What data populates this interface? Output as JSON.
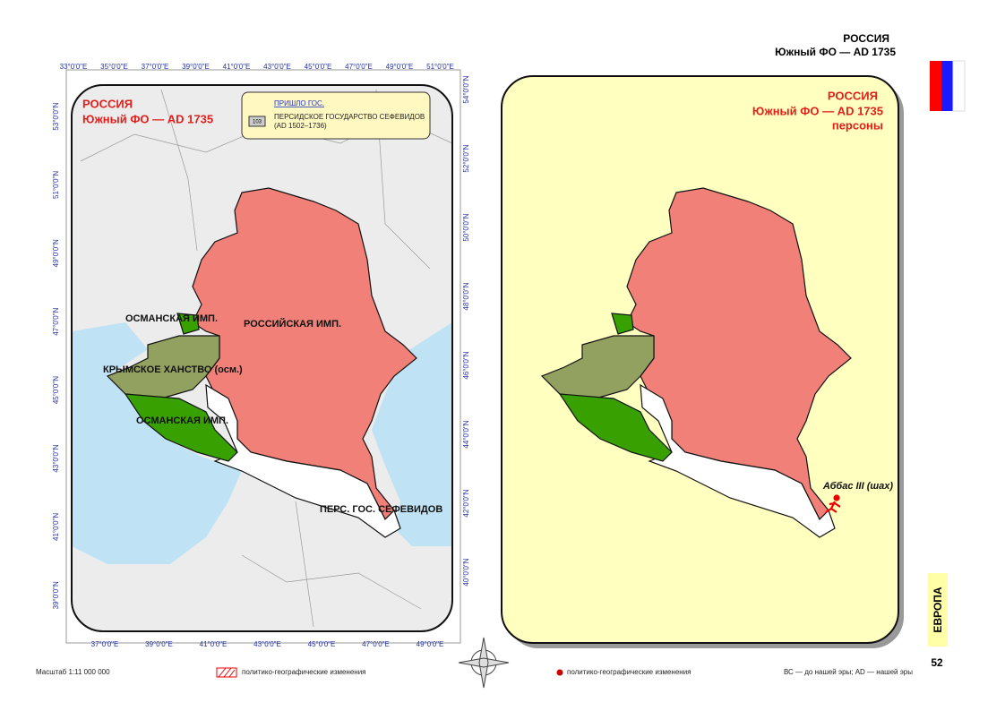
{
  "header": {
    "title": "РОССИЯ",
    "subtitle": "Южный ФО — AD 1735"
  },
  "left_map": {
    "title": "РОССИЯ",
    "subtitle": "Южный ФО — AD 1735",
    "legend": {
      "heading": "ПРИШЛО ГОС.",
      "code": "103",
      "name": "ПЕРСИДСКОЕ ГОСУДАРСТВО СЕФЕВИДОВ",
      "period": "(AD 1502–1736)"
    },
    "labels": [
      "ОСМАНСКАЯ ИМП.",
      "РОССИЙСКАЯ ИМП.",
      "КРЫМСКОЕ ХАНСТВО (осм.)",
      "ОСМАНСКАЯ ИМП.",
      "ПЕРС. ГОС. СЕФЕВИДОВ"
    ],
    "graticule": {
      "top": [
        "33°0'0\"E",
        "35°0'0\"E",
        "37°0'0\"E",
        "39°0'0\"E",
        "41°0'0\"E",
        "43°0'0\"E",
        "45°0'0\"E",
        "47°0'0\"E",
        "49°0'0\"E",
        "51°0'0\"E"
      ],
      "bottom": [
        "37°0'0\"E",
        "39°0'0\"E",
        "41°0'0\"E",
        "43°0'0\"E",
        "45°0'0\"E",
        "47°0'0\"E",
        "49°0'0\"E"
      ],
      "left": [
        "53°0'0\"N",
        "51°0'0\"N",
        "49°0'0\"N",
        "47°0'0\"N",
        "45°0'0\"N",
        "43°0'0\"N",
        "41°0'0\"N",
        "39°0'0\"N"
      ],
      "right": [
        "54°0'0\"N",
        "52°0'0\"N",
        "50°0'0\"N",
        "48°0'0\"N",
        "46°0'0\"N",
        "44°0'0\"N",
        "42°0'0\"N",
        "40°0'0\"N"
      ]
    }
  },
  "right_map": {
    "title": "РОССИЯ",
    "subtitle": "Южный ФО — AD 1735",
    "subject": "персоны",
    "person": "Аббас III (шах)"
  },
  "footer": {
    "scale": "Масштаб 1:11 000 000",
    "left_legend": "политико-географические изменения",
    "right_legend": "политико-географические изменения",
    "note": "ВС — до нашей эры; AD — нашей эры"
  },
  "sidebar": {
    "region": "ЕВРОПА",
    "page": "52"
  }
}
